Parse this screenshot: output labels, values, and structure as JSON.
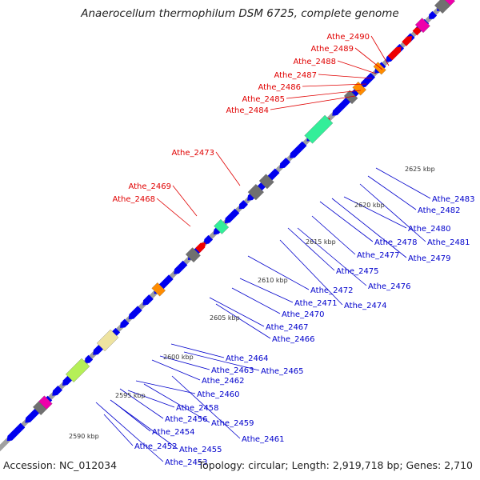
{
  "title": "Anaerocellum thermophilum DSM 6725, complete genome",
  "accession": "Accession: NC_012034",
  "stats": "Topology: circular; Length: 2,919,718 bp; Genes: 2,710",
  "scale_labels": [
    "2590 kbp",
    "2595 kbp",
    "2600 kbp",
    "2605 kbp",
    "2610 kbp",
    "2615 kbp",
    "2620 kbp",
    "2625 kbp"
  ],
  "labels_forward": [
    "Athe_2468",
    "Athe_2469",
    "Athe_2473",
    "Athe_2484",
    "Athe_2485",
    "Athe_2486",
    "Athe_2487",
    "Athe_2488",
    "Athe_2489",
    "Athe_2490"
  ],
  "labels_reverse": [
    "Athe_2452",
    "Athe_2453",
    "Athe_2454",
    "Athe_2455",
    "Athe_2456",
    "Athe_2458",
    "Athe_2459",
    "Athe_2460",
    "Athe_2461",
    "Athe_2462",
    "Athe_2463",
    "Athe_2464",
    "Athe_2465",
    "Athe_2466",
    "Athe_2467",
    "Athe_2470",
    "Athe_2471",
    "Athe_2472",
    "Athe_2474",
    "Athe_2475",
    "Athe_2476",
    "Athe_2477",
    "Athe_2478",
    "Athe_2479",
    "Athe_2480",
    "Athe_2481",
    "Athe_2482",
    "Athe_2483"
  ],
  "colors": {
    "forward_label": "#e00000",
    "reverse_label": "#0000cc",
    "backbone": "#a0a0a0",
    "dots": "#2a8a2a",
    "cds_blue": "#0000ee",
    "cds_red": "#ee0000",
    "magenta": "#ee00aa",
    "gray": "#707070",
    "orange": "#ff8c00",
    "teal": "#33ee99",
    "khaki": "#eee3a0",
    "lime": "#b5ef58"
  }
}
